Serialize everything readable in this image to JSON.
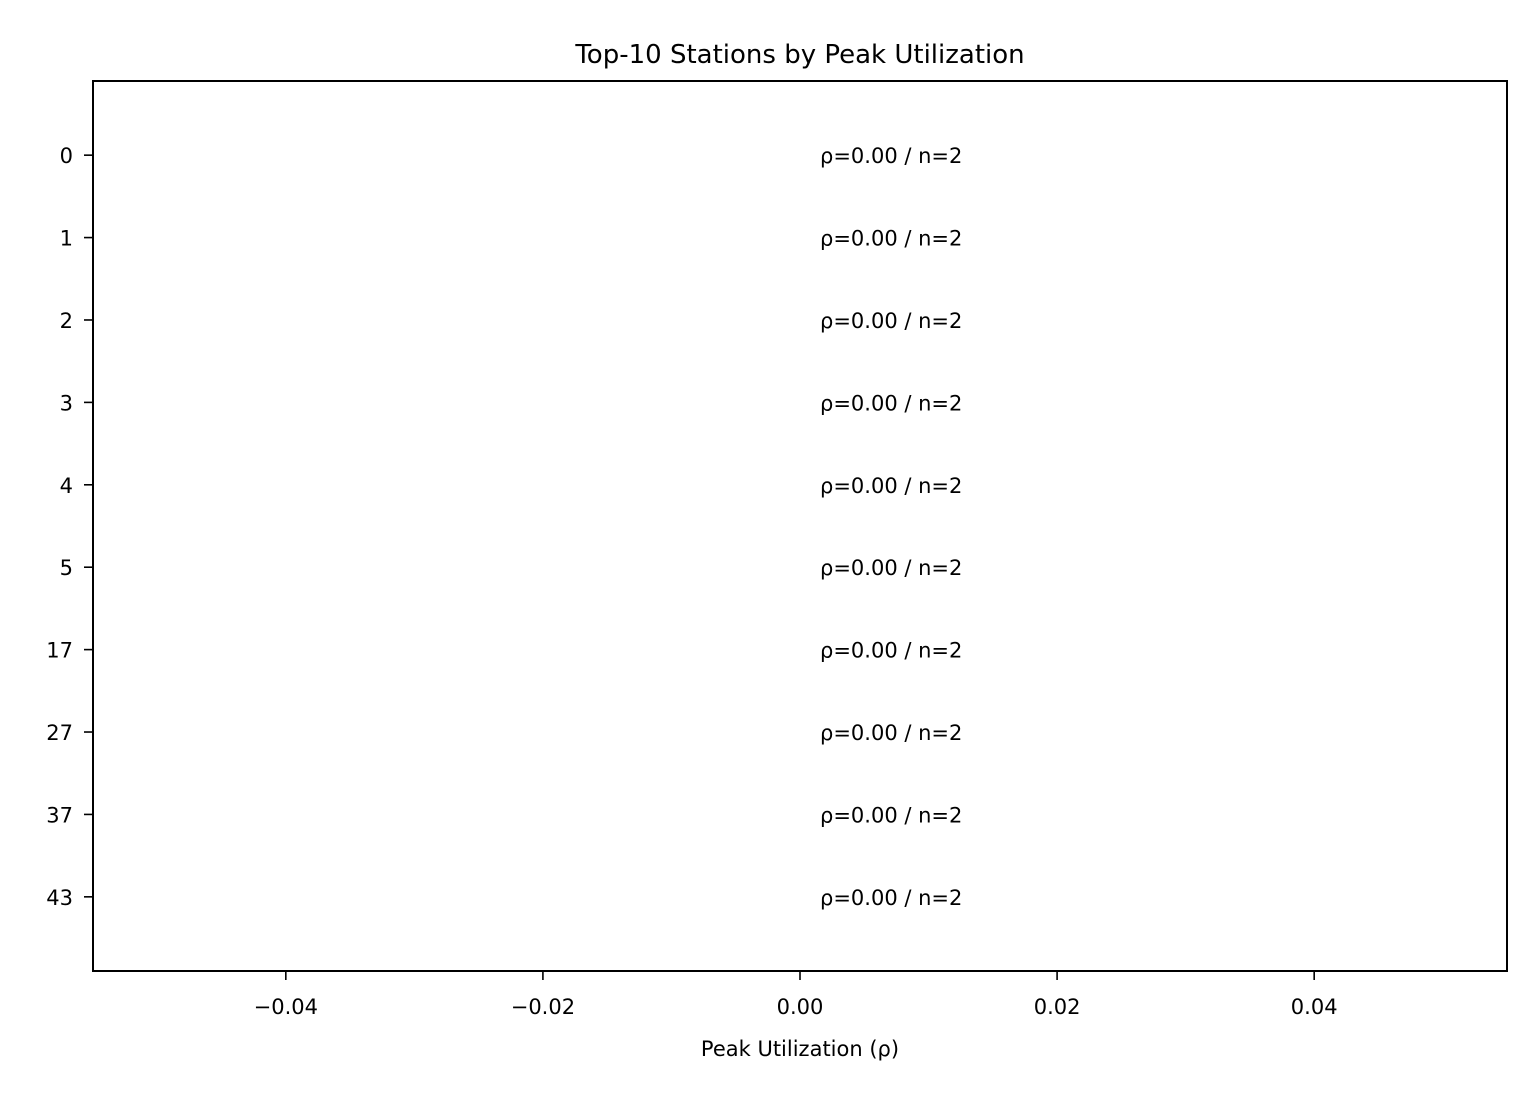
{
  "chart_data": {
    "type": "bar",
    "orientation": "horizontal",
    "title": "Top-10 Stations by Peak Utilization",
    "xlabel": "Peak Utilization (ρ)",
    "ylabel": "",
    "categories": [
      "0",
      "1",
      "2",
      "3",
      "4",
      "5",
      "17",
      "27",
      "37",
      "43"
    ],
    "values": [
      0.0,
      0.0,
      0.0,
      0.0,
      0.0,
      0.0,
      0.0,
      0.0,
      0.0,
      0.0
    ],
    "bar_labels": [
      "ρ=0.00 / n=2",
      "ρ=0.00 / n=2",
      "ρ=0.00 / n=2",
      "ρ=0.00 / n=2",
      "ρ=0.00 / n=2",
      "ρ=0.00 / n=2",
      "ρ=0.00 / n=2",
      "ρ=0.00 / n=2",
      "ρ=0.00 / n=2",
      "ρ=0.00 / n=2"
    ],
    "xlim": [
      -0.055,
      0.055
    ],
    "xticks": [
      -0.04,
      -0.02,
      0.0,
      0.02,
      0.04
    ],
    "xtick_labels": [
      "−0.04",
      "−0.02",
      "0.00",
      "0.02",
      "0.04"
    ],
    "grid": false,
    "legend": "none"
  }
}
